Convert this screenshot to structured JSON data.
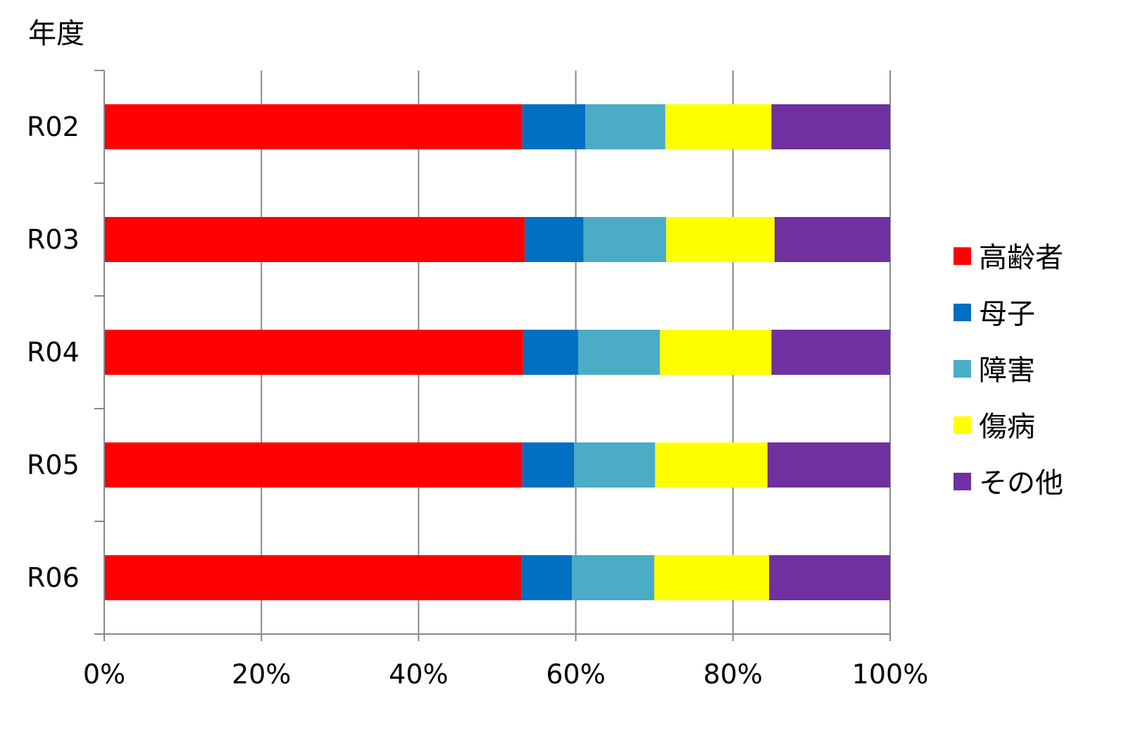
{
  "chart_data": {
    "type": "bar",
    "orientation": "horizontal",
    "stacked": "percent",
    "ylabel": "年度",
    "categories": [
      "R02",
      "R03",
      "R04",
      "R05",
      "R06"
    ],
    "x_ticks": [
      "0%",
      "20%",
      "40%",
      "60%",
      "80%",
      "100%"
    ],
    "xlim": [
      0,
      100
    ],
    "grid": "vertical",
    "legend_position": "right",
    "series": [
      {
        "name": "高齢者",
        "color": "#ff0000",
        "values": [
          53.2,
          53.5,
          53.3,
          53.2,
          53.1
        ]
      },
      {
        "name": "母子",
        "color": "#0070c0",
        "values": [
          8.0,
          7.5,
          7.0,
          6.6,
          6.4
        ]
      },
      {
        "name": "障害",
        "color": "#4bacc6",
        "values": [
          10.2,
          10.5,
          10.4,
          10.3,
          10.5
        ]
      },
      {
        "name": "傷病",
        "color": "#ffff00",
        "values": [
          13.5,
          13.8,
          14.2,
          14.3,
          14.6
        ]
      },
      {
        "name": "その他",
        "color": "#7030a0",
        "values": [
          15.1,
          14.7,
          15.1,
          15.6,
          15.4
        ]
      }
    ]
  }
}
